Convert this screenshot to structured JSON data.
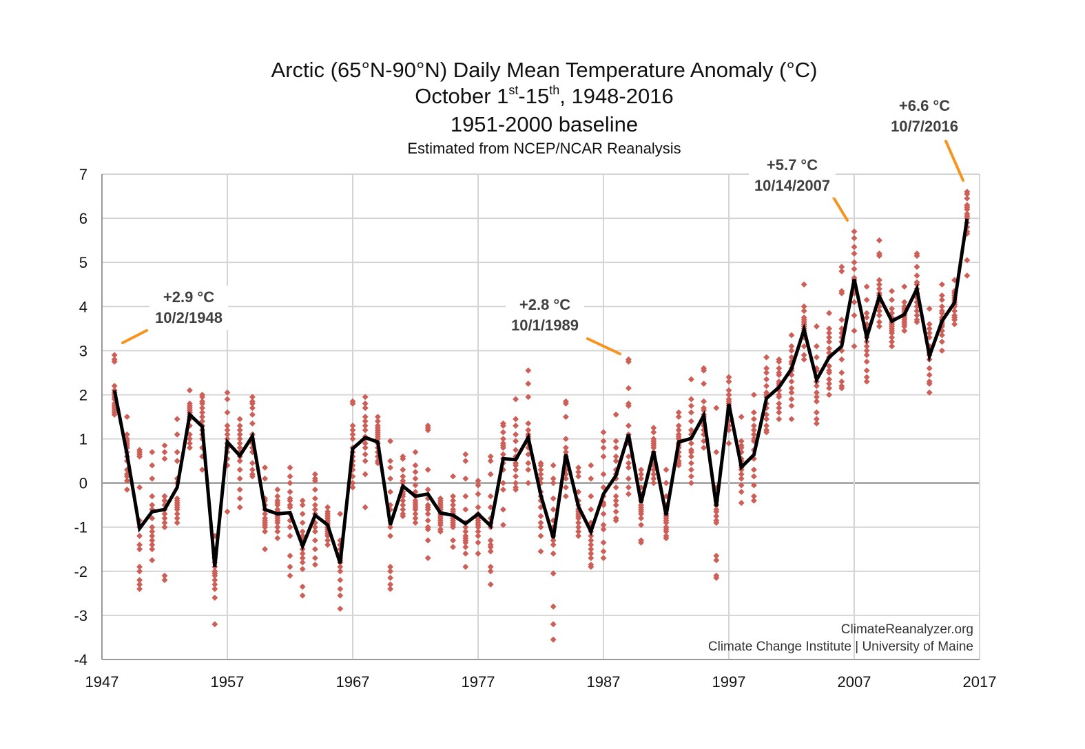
{
  "title": {
    "line1": "Arctic (65°N-90°N) Daily Mean Temperature Anomaly (°C)",
    "line2_prefix": "October 1",
    "line2_sup1": "st",
    "line2_mid": "-15",
    "line2_sup2": "th",
    "line2_suffix": ", 1948-2016",
    "line3": "1951-2000 baseline",
    "subtitle": "Estimated from NCEP/NCAR Reanalysis"
  },
  "credits": {
    "line1": "ClimateReanalyzer.org",
    "line2": "Climate Change Institute | University of Maine"
  },
  "annotations": [
    {
      "value": "+2.9 °C",
      "date": "10/2/1948"
    },
    {
      "value": "+2.8 °C",
      "date": "10/1/1989"
    },
    {
      "value": "+5.7 °C",
      "date": "10/14/2007"
    },
    {
      "value": "+6.6 °C",
      "date": "10/7/2016"
    }
  ],
  "colors": {
    "daily": "#cc5f58",
    "mean": "#000000",
    "leader": "#f7941d",
    "grid": "#d4d4d4",
    "zero_line": "#7f7f7f"
  },
  "chart_data": {
    "type": "scatter+line",
    "xlim": [
      1947,
      2017
    ],
    "ylim": [
      -4,
      7
    ],
    "x_ticks": [
      1947,
      1957,
      1967,
      1977,
      1987,
      1997,
      2007,
      2017
    ],
    "y_ticks": [
      -4,
      -3,
      -2,
      -1,
      0,
      1,
      2,
      3,
      4,
      5,
      6,
      7
    ],
    "grid": true,
    "legend": "none",
    "years": [
      1948,
      1949,
      1950,
      1951,
      1952,
      1953,
      1954,
      1955,
      1956,
      1957,
      1958,
      1959,
      1960,
      1961,
      1962,
      1963,
      1964,
      1965,
      1966,
      1967,
      1968,
      1969,
      1970,
      1971,
      1972,
      1973,
      1974,
      1975,
      1976,
      1977,
      1978,
      1979,
      1980,
      1981,
      1982,
      1983,
      1984,
      1985,
      1986,
      1987,
      1988,
      1989,
      1990,
      1991,
      1992,
      1993,
      1994,
      1995,
      1996,
      1997,
      1998,
      1999,
      2000,
      2001,
      2002,
      2003,
      2004,
      2005,
      2006,
      2007,
      2008,
      2009,
      2010,
      2011,
      2012,
      2013,
      2014,
      2015,
      2016
    ],
    "mean_series": [
      2.1,
      0.65,
      -1.03,
      -0.65,
      -0.6,
      -0.1,
      1.55,
      1.28,
      -1.9,
      0.93,
      0.62,
      1.06,
      -0.6,
      -0.7,
      -0.67,
      -1.43,
      -0.73,
      -0.95,
      -1.82,
      0.78,
      1.03,
      0.93,
      -0.95,
      -0.07,
      -0.3,
      -0.25,
      -0.68,
      -0.73,
      -0.92,
      -0.7,
      -0.97,
      0.55,
      0.53,
      1.03,
      -0.27,
      -1.25,
      0.65,
      -0.53,
      -1.1,
      -0.25,
      0.17,
      1.1,
      -0.45,
      0.72,
      -0.73,
      0.93,
      1.01,
      1.53,
      -0.53,
      1.79,
      0.36,
      0.64,
      1.92,
      2.17,
      2.59,
      3.48,
      2.34,
      2.85,
      3.1,
      4.62,
      3.3,
      4.23,
      3.67,
      3.82,
      4.4,
      2.88,
      3.67,
      4.09,
      5.99
    ],
    "daily_values": [
      [
        2.9,
        2.8,
        2.75,
        2.2,
        2.0,
        1.9,
        1.8,
        1.7,
        1.6,
        1.55,
        2.1,
        1.95,
        1.75,
        1.65,
        2.05
      ],
      [
        1.5,
        1.1,
        1.0,
        0.9,
        0.8,
        0.7,
        0.6,
        0.5,
        0.3,
        0.2,
        0.15,
        0.05,
        -0.15,
        0.95,
        0.85
      ],
      [
        0.75,
        0.7,
        0.65,
        -0.1,
        -0.85,
        -1.0,
        -1.2,
        -1.4,
        -1.5,
        -1.9,
        -2.0,
        -2.2,
        -2.3,
        -2.4,
        0.6
      ],
      [
        0.7,
        0.4,
        0.1,
        -0.3,
        -0.5,
        -0.6,
        -0.8,
        -1.0,
        -1.1,
        -1.2,
        -1.3,
        -1.4,
        -1.5,
        -1.75,
        -0.6
      ],
      [
        0.85,
        0.7,
        0.55,
        -0.3,
        -0.4,
        -0.5,
        -0.7,
        -0.8,
        -0.9,
        -1.0,
        -2.1,
        -2.2,
        -0.6,
        -0.3,
        -0.4
      ],
      [
        1.45,
        1.1,
        0.7,
        0.5,
        0.0,
        -0.35,
        -0.45,
        -0.55,
        -0.6,
        -0.7,
        -0.8,
        -0.9,
        0.1,
        -0.5,
        -0.4
      ],
      [
        2.1,
        1.8,
        1.75,
        1.65,
        1.6,
        1.55,
        1.5,
        1.45,
        1.3,
        1.1,
        1.0,
        0.9,
        0.8,
        1.6,
        1.7
      ],
      [
        2.0,
        1.95,
        1.85,
        1.8,
        1.7,
        1.5,
        1.3,
        1.1,
        0.8,
        0.6,
        0.3,
        1.4,
        1.2,
        1.0,
        1.6
      ],
      [
        -1.2,
        -1.8,
        -2.0,
        -2.05,
        -2.1,
        -2.2,
        -2.3,
        -2.4,
        -2.6,
        -3.2,
        -1.9,
        -2.0,
        -1.7,
        -1.5,
        -1.6
      ],
      [
        2.05,
        1.9,
        1.6,
        1.3,
        1.2,
        1.1,
        1.0,
        0.9,
        0.8,
        0.7,
        0.55,
        0.4,
        -0.65,
        0.8,
        0.9
      ],
      [
        1.45,
        1.3,
        1.2,
        1.1,
        1.0,
        0.9,
        0.8,
        0.6,
        0.5,
        0.3,
        0.1,
        -0.15,
        -0.35,
        -0.55,
        0.7
      ],
      [
        1.95,
        1.85,
        1.8,
        1.55,
        1.35,
        1.1,
        0.9,
        0.7,
        0.45,
        0.3,
        0.2,
        0.15,
        1.0,
        1.7,
        0.8
      ],
      [
        0.35,
        0.1,
        -0.4,
        -0.6,
        -0.8,
        -0.9,
        -1.0,
        -1.1,
        -1.5,
        -0.7,
        -0.6,
        -0.5,
        -0.95,
        -0.85,
        -0.35
      ],
      [
        -0.15,
        -0.3,
        -0.4,
        -0.5,
        -0.6,
        -0.7,
        -0.8,
        -0.9,
        -1.0,
        -1.1,
        -1.25,
        -0.45,
        -0.75,
        -0.85,
        -0.65
      ],
      [
        0.35,
        0.15,
        0.0,
        -0.2,
        -0.4,
        -0.55,
        -0.7,
        -0.85,
        -1.0,
        -1.2,
        -1.65,
        -1.9,
        -2.1,
        -0.5,
        -0.35
      ],
      [
        -0.4,
        -0.5,
        -0.7,
        -0.9,
        -1.1,
        -1.25,
        -1.4,
        -1.6,
        -1.8,
        -1.95,
        -2.35,
        -2.55,
        -1.5,
        -1.7,
        -1.2
      ],
      [
        0.2,
        0.1,
        -0.15,
        -0.35,
        -0.5,
        -0.7,
        -0.9,
        -1.0,
        -1.3,
        -1.5,
        -1.7,
        -1.85,
        0.05,
        -1.1,
        -0.6
      ],
      [
        -0.55,
        -0.65,
        -0.8,
        -0.9,
        -1.0,
        -1.1,
        -1.2,
        -1.3,
        -1.4,
        -0.95,
        -0.85,
        -1.05,
        -0.7,
        -0.75,
        -1.15
      ],
      [
        -0.7,
        -1.4,
        -1.5,
        -1.6,
        -1.7,
        -1.8,
        -1.9,
        -2.0,
        -2.2,
        -2.4,
        -2.55,
        -2.85,
        -1.65,
        -1.75,
        -1.3
      ],
      [
        1.85,
        1.8,
        1.3,
        1.2,
        1.1,
        1.0,
        0.8,
        0.7,
        0.5,
        0.3,
        0.15,
        0.0,
        -0.1,
        0.6,
        0.4
      ],
      [
        1.95,
        1.8,
        1.7,
        1.5,
        1.4,
        1.3,
        1.2,
        1.05,
        0.9,
        0.8,
        0.65,
        0.5,
        0.2,
        -0.55,
        1.0
      ],
      [
        1.5,
        1.4,
        1.3,
        1.2,
        1.15,
        1.1,
        1.0,
        0.9,
        0.8,
        0.7,
        0.6,
        0.5,
        0.45,
        1.25,
        1.05
      ],
      [
        0.95,
        0.5,
        0.35,
        0.1,
        -0.2,
        -0.5,
        -0.85,
        -1.2,
        -1.9,
        -2.0,
        -2.15,
        -2.3,
        -2.4,
        -1.0,
        -0.6
      ],
      [
        0.55,
        0.6,
        0.3,
        0.15,
        0.05,
        -0.1,
        -0.25,
        -0.3,
        -0.4,
        -0.5,
        -0.6,
        -0.7,
        -0.75,
        -0.2,
        0.0
      ],
      [
        0.7,
        0.4,
        0.25,
        0.1,
        -0.05,
        -0.2,
        -0.4,
        -0.5,
        -0.6,
        -0.7,
        -0.8,
        -0.9,
        -0.3,
        -0.45,
        -0.55
      ],
      [
        1.3,
        1.25,
        1.2,
        0.3,
        -0.15,
        -0.35,
        -0.55,
        -0.7,
        -0.85,
        -1.0,
        -1.05,
        -1.3,
        -1.7,
        -0.5,
        -0.6
      ],
      [
        -0.35,
        -0.4,
        -0.45,
        -0.55,
        -0.6,
        -0.65,
        -0.7,
        -0.8,
        -0.85,
        -0.9,
        -1.05,
        -1.1,
        -0.75,
        -0.5,
        -0.95
      ],
      [
        0.15,
        -0.3,
        -0.4,
        -0.5,
        -0.6,
        -0.7,
        -0.8,
        -0.85,
        -0.9,
        -1.0,
        -1.3,
        -1.45,
        -0.75,
        -0.65,
        -0.95
      ],
      [
        0.65,
        0.5,
        0.1,
        -0.3,
        -0.6,
        -0.9,
        -1.0,
        -1.1,
        -1.25,
        -1.35,
        -1.45,
        -1.6,
        -1.9,
        -1.2,
        -1.3
      ],
      [
        0.05,
        -0.05,
        -0.25,
        -0.55,
        -0.7,
        -0.8,
        -0.85,
        -0.9,
        -1.0,
        -1.1,
        -1.2,
        -1.35,
        -1.6,
        -0.75,
        -0.95
      ],
      [
        0.6,
        0.5,
        0.2,
        -0.3,
        -0.55,
        -0.8,
        -0.9,
        -1.0,
        -1.3,
        -1.45,
        -1.55,
        -1.9,
        -2.0,
        -2.3,
        -1.4
      ],
      [
        1.35,
        1.3,
        1.15,
        1.0,
        0.9,
        0.8,
        0.65,
        0.55,
        0.45,
        0.3,
        0.0,
        -0.15,
        -0.6,
        -0.95,
        0.85
      ],
      [
        1.9,
        1.45,
        1.3,
        1.1,
        0.95,
        0.75,
        0.55,
        0.45,
        0.3,
        0.15,
        0.0,
        -0.1,
        -0.15,
        0.4,
        0.6
      ],
      [
        2.55,
        2.25,
        1.95,
        1.35,
        1.2,
        1.1,
        1.05,
        1.0,
        0.9,
        0.8,
        0.65,
        0.45,
        0.3,
        0.0,
        0.9
      ],
      [
        0.45,
        0.4,
        0.3,
        0.2,
        0.0,
        -0.2,
        -0.4,
        -0.55,
        -0.75,
        -0.9,
        -1.0,
        -1.2,
        -1.55,
        0.1,
        -0.3
      ],
      [
        0.4,
        0.1,
        0.0,
        -0.35,
        -0.6,
        -0.85,
        -1.0,
        -1.2,
        -1.4,
        -1.6,
        -2.05,
        -2.8,
        -3.2,
        -3.55,
        -1.3
      ],
      [
        1.85,
        1.8,
        1.5,
        1.0,
        0.8,
        0.7,
        0.6,
        0.5,
        0.4,
        0.3,
        0.2,
        0.1,
        -0.3,
        -0.1,
        0.55
      ],
      [
        0.35,
        0.25,
        0.15,
        -0.2,
        -0.5,
        -0.6,
        -0.7,
        -0.8,
        -0.9,
        -1.0,
        -1.1,
        -1.2,
        -0.4,
        -0.65,
        -0.75
      ],
      [
        0.4,
        0.1,
        -0.3,
        -0.6,
        -0.9,
        -1.1,
        -1.2,
        -1.3,
        -1.4,
        -1.6,
        -1.7,
        -1.85,
        -1.9,
        -1.0,
        -1.5
      ],
      [
        1.15,
        0.95,
        0.8,
        0.6,
        0.2,
        -0.1,
        -0.3,
        -0.5,
        -0.7,
        -0.95,
        -1.05,
        -1.35,
        -1.55,
        -1.7,
        -0.45
      ],
      [
        1.55,
        0.95,
        0.8,
        0.6,
        0.5,
        0.3,
        0.1,
        -0.1,
        -0.3,
        -0.4,
        -0.5,
        -0.65,
        -0.8,
        -0.85,
        0.2
      ],
      [
        2.8,
        2.75,
        2.15,
        1.8,
        1.75,
        1.3,
        1.1,
        0.9,
        0.6,
        0.45,
        0.35,
        0.1,
        -0.1,
        -0.25,
        1.0
      ],
      [
        0.3,
        0.2,
        0.1,
        -0.1,
        -0.25,
        -0.4,
        -0.55,
        -0.65,
        -0.7,
        -0.95,
        -1.3,
        -1.35,
        -0.5,
        -0.6,
        -0.8
      ],
      [
        1.25,
        1.15,
        1.0,
        0.9,
        0.85,
        0.7,
        0.6,
        0.5,
        0.4,
        0.3,
        0.2,
        0.1,
        0.0,
        0.95,
        0.8
      ],
      [
        0.3,
        0.0,
        -0.3,
        -0.5,
        -0.6,
        -0.7,
        -0.8,
        -0.9,
        -1.0,
        -1.05,
        -1.1,
        -1.2,
        -1.25,
        -0.75,
        -0.85
      ],
      [
        1.6,
        1.5,
        1.3,
        1.2,
        1.1,
        1.0,
        0.9,
        0.8,
        0.7,
        0.6,
        0.5,
        0.45,
        1.05,
        0.85,
        0.4
      ],
      [
        2.35,
        1.9,
        1.75,
        1.6,
        1.4,
        1.2,
        1.1,
        0.9,
        0.75,
        0.6,
        0.45,
        0.3,
        0.15,
        0.0,
        0.7
      ],
      [
        2.6,
        2.55,
        2.25,
        1.85,
        1.7,
        1.65,
        1.55,
        1.45,
        1.3,
        1.2,
        1.1,
        0.95,
        0.8,
        1.5,
        1.35
      ],
      [
        1.7,
        0.7,
        -0.1,
        -0.3,
        -0.4,
        -0.5,
        -0.65,
        -0.75,
        -0.85,
        -0.9,
        -1.65,
        -1.75,
        -2.1,
        -2.15,
        -0.6
      ],
      [
        2.4,
        2.3,
        2.1,
        2.0,
        1.9,
        1.8,
        1.7,
        1.6,
        1.4,
        1.3,
        1.2,
        0.9,
        1.75,
        1.65,
        1.85
      ],
      [
        1.5,
        0.95,
        0.85,
        0.8,
        0.7,
        0.55,
        0.4,
        0.3,
        0.2,
        0.1,
        -0.05,
        -0.2,
        -0.45,
        0.35,
        0.5
      ],
      [
        2.0,
        1.45,
        1.2,
        1.1,
        0.95,
        0.75,
        0.55,
        0.3,
        0.15,
        -0.05,
        -0.3,
        -0.4,
        1.3,
        1.6,
        1.0
      ],
      [
        2.85,
        2.6,
        2.5,
        2.35,
        2.2,
        2.05,
        2.0,
        1.95,
        1.8,
        1.7,
        1.55,
        1.45,
        1.3,
        1.2,
        1.15
      ],
      [
        2.8,
        2.75,
        2.6,
        2.45,
        2.3,
        2.2,
        2.1,
        2.0,
        1.95,
        1.8,
        1.7,
        1.6,
        1.45,
        2.25,
        2.5
      ],
      [
        3.35,
        3.0,
        2.85,
        2.75,
        2.6,
        2.55,
        2.45,
        2.3,
        2.15,
        2.05,
        1.9,
        1.75,
        1.45,
        2.7,
        3.1
      ],
      [
        4.5,
        4.0,
        3.9,
        3.75,
        3.7,
        3.6,
        3.5,
        3.45,
        3.4,
        3.3,
        3.1,
        2.9,
        2.8,
        3.55,
        3.65
      ],
      [
        3.55,
        3.1,
        2.85,
        2.6,
        2.55,
        2.4,
        2.3,
        2.2,
        2.05,
        1.95,
        1.85,
        1.6,
        1.45,
        1.35,
        2.3
      ],
      [
        3.85,
        3.5,
        3.4,
        3.3,
        3.2,
        3.05,
        2.85,
        2.65,
        2.5,
        2.35,
        2.25,
        2.15,
        2.0,
        2.55,
        2.95
      ],
      [
        4.9,
        4.8,
        4.35,
        4.3,
        3.7,
        3.4,
        3.2,
        3.0,
        2.8,
        2.5,
        2.3,
        2.2,
        2.15,
        3.5,
        3.3
      ],
      [
        5.7,
        5.55,
        5.35,
        5.2,
        5.0,
        4.85,
        4.65,
        4.6,
        4.4,
        4.3,
        4.1,
        3.8,
        3.45,
        3.1,
        4.5
      ],
      [
        4.45,
        4.15,
        3.85,
        3.75,
        3.6,
        3.5,
        3.3,
        3.1,
        2.9,
        2.75,
        2.55,
        2.4,
        2.3,
        3.2,
        3.0
      ],
      [
        5.5,
        5.2,
        5.15,
        4.6,
        4.5,
        4.4,
        4.3,
        4.2,
        4.1,
        4.0,
        3.9,
        3.8,
        3.65,
        4.25,
        3.55
      ],
      [
        4.35,
        4.15,
        3.95,
        3.85,
        3.75,
        3.65,
        3.55,
        3.5,
        3.45,
        3.4,
        3.3,
        3.2,
        3.1,
        3.6,
        3.7
      ],
      [
        4.45,
        4.1,
        4.0,
        3.95,
        3.9,
        3.85,
        3.8,
        3.75,
        3.7,
        3.65,
        3.6,
        3.55,
        3.45,
        3.8,
        3.85
      ],
      [
        5.2,
        5.15,
        4.9,
        4.7,
        4.5,
        4.3,
        4.2,
        4.1,
        4.0,
        3.9,
        3.8,
        3.7,
        3.65,
        4.55,
        4.4
      ],
      [
        3.95,
        3.6,
        3.5,
        3.3,
        3.1,
        2.95,
        2.8,
        2.6,
        2.45,
        2.3,
        2.25,
        2.05,
        3.0,
        2.9,
        3.4
      ],
      [
        4.5,
        4.25,
        4.15,
        4.0,
        3.9,
        3.85,
        3.75,
        3.65,
        3.55,
        3.45,
        3.35,
        3.2,
        3.0,
        3.7,
        3.6
      ],
      [
        4.6,
        4.35,
        4.3,
        4.25,
        4.15,
        4.1,
        4.05,
        4.0,
        3.9,
        3.8,
        3.75,
        3.7,
        3.6,
        4.2,
        4.1
      ],
      [
        6.6,
        6.55,
        6.3,
        6.2,
        6.1,
        6.05,
        6.0,
        5.9,
        5.8,
        5.7,
        5.65,
        5.05,
        4.7,
        6.25,
        6.45
      ]
    ]
  }
}
